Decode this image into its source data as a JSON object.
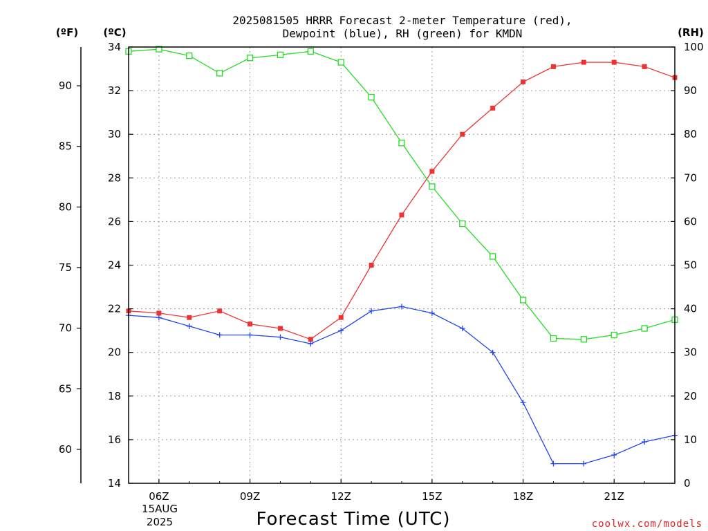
{
  "colors": {
    "temperature": "#ee3333",
    "dewpoint": "#2244ee",
    "rh": "#22dd22",
    "credit": "#dd2222",
    "grid": "#9a9a9a"
  },
  "chart_data": {
    "type": "line",
    "title_lines": [
      "2025081505 HRRR Forecast 2-meter Temperature (red),",
      "Dewpoint (blue), RH (green) for KMDN"
    ],
    "xlabel": "Forecast Time (UTC)",
    "x_tick_labels": [
      "06Z",
      "09Z",
      "12Z",
      "15Z",
      "18Z",
      "21Z"
    ],
    "x_date_label": [
      "15AUG",
      "2025"
    ],
    "x_hours": [
      5,
      6,
      7,
      8,
      9,
      10,
      11,
      12,
      13,
      14,
      15,
      16,
      17,
      18,
      19,
      20,
      21,
      22,
      23
    ],
    "xlim": [
      5,
      23
    ],
    "left_unit_label": "(ºF)",
    "left_ticks": [
      "60",
      "65",
      "70",
      "75",
      "80",
      "85",
      "90"
    ],
    "inner_unit_label": "(ºC)",
    "ylim_c": [
      14,
      34
    ],
    "y_ticks_c": [
      "14",
      "16",
      "18",
      "20",
      "22",
      "24",
      "26",
      "28",
      "30",
      "32",
      "34"
    ],
    "right_unit_label": "(RH)",
    "ylim_rh": [
      0,
      100
    ],
    "y_ticks_rh": [
      "0",
      "10",
      "20",
      "30",
      "40",
      "50",
      "60",
      "70",
      "80",
      "90",
      "100"
    ],
    "grid": true,
    "series": [
      {
        "name": "Temperature",
        "axis": "celsius",
        "marker": "filled-square",
        "values": [
          21.9,
          21.8,
          21.6,
          21.9,
          21.3,
          21.1,
          20.6,
          21.6,
          24.0,
          26.3,
          28.3,
          30.0,
          31.2,
          32.4,
          33.1,
          33.3,
          33.3,
          33.1,
          32.6
        ]
      },
      {
        "name": "Dewpoint",
        "axis": "celsius",
        "marker": "plus",
        "values": [
          21.7,
          21.6,
          21.2,
          20.8,
          20.8,
          20.7,
          20.4,
          21.0,
          21.9,
          22.1,
          21.8,
          21.1,
          20.0,
          17.7,
          14.9,
          14.9,
          15.3,
          15.9,
          16.2
        ]
      },
      {
        "name": "RH",
        "axis": "rh",
        "marker": "open-square",
        "values": [
          99,
          99.5,
          98,
          94,
          97.5,
          98.2,
          99,
          96.5,
          88.5,
          78,
          68,
          59.5,
          52,
          42,
          33.2,
          33,
          34,
          35.5,
          37.5
        ]
      }
    ]
  },
  "credit": "coolwx.com/models"
}
